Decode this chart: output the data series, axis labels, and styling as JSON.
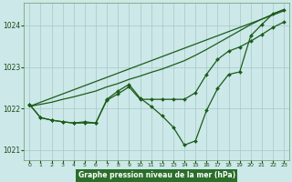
{
  "bg_color": "#cce8e8",
  "grid_color": "#a8c8c8",
  "line_color": "#1a5c1a",
  "xlabel": "Graphe pression niveau de la mer (hPa)",
  "xlabel_bg": "#2a6e2a",
  "xlabel_fg": "#ffffff",
  "xlim": [
    -0.5,
    23.5
  ],
  "ylim": [
    1020.75,
    1024.55
  ],
  "yticks": [
    1021,
    1022,
    1023,
    1024
  ],
  "xticks": [
    0,
    1,
    2,
    3,
    4,
    5,
    6,
    7,
    8,
    9,
    10,
    11,
    12,
    13,
    14,
    15,
    16,
    17,
    18,
    19,
    20,
    21,
    22,
    23
  ],
  "line1_x": [
    0,
    1,
    2,
    3,
    4,
    5,
    6,
    7,
    8,
    9,
    10,
    11,
    12,
    13,
    14,
    15,
    16,
    17,
    18,
    19,
    20,
    21,
    22,
    23
  ],
  "line1_y": [
    1022.05,
    1022.1,
    1022.15,
    1022.22,
    1022.28,
    1022.35,
    1022.42,
    1022.52,
    1022.6,
    1022.7,
    1022.78,
    1022.87,
    1022.95,
    1023.05,
    1023.15,
    1023.28,
    1023.42,
    1023.57,
    1023.72,
    1023.87,
    1024.02,
    1024.15,
    1024.27,
    1024.38
  ],
  "line2_x": [
    0,
    1,
    2,
    3,
    4,
    5,
    6,
    7,
    8,
    9,
    10,
    11,
    12,
    13,
    14,
    15,
    16,
    17,
    18,
    19,
    20,
    21,
    22,
    23
  ],
  "line2_y": [
    1022.1,
    1021.78,
    1021.72,
    1021.68,
    1021.65,
    1021.68,
    1021.65,
    1022.22,
    1022.42,
    1022.58,
    1022.25,
    1022.05,
    1021.82,
    1021.55,
    1021.12,
    1021.22,
    1021.95,
    1022.48,
    1022.82,
    1022.88,
    1023.75,
    1024.02,
    1024.28,
    1024.38
  ],
  "line3_x": [
    0,
    23
  ],
  "line3_y": [
    1022.05,
    1024.35
  ],
  "line4_x": [
    0,
    1,
    2,
    3,
    4,
    5,
    6,
    7,
    8,
    9,
    10,
    11,
    12,
    13,
    14,
    15,
    16,
    17,
    18,
    19,
    20,
    21,
    22,
    23
  ],
  "line4_y": [
    1022.1,
    1021.78,
    1021.72,
    1021.68,
    1021.65,
    1021.65,
    1021.65,
    1022.2,
    1022.35,
    1022.52,
    1022.22,
    1022.22,
    1022.22,
    1022.22,
    1022.22,
    1022.38,
    1022.82,
    1023.18,
    1023.38,
    1023.48,
    1023.62,
    1023.78,
    1023.95,
    1024.08
  ]
}
